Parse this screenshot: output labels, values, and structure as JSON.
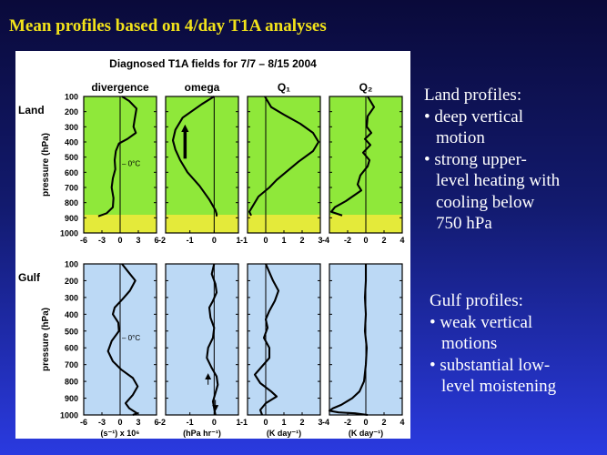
{
  "slide": {
    "title": "Mean profiles based on 4/day T1A analyses"
  },
  "land_text": {
    "heading": "Land profiles:",
    "lines": [
      "• deep vertical",
      "motion",
      "• strong upper-",
      "level heating with",
      "cooling below",
      "750 hPa"
    ]
  },
  "gulf_text": {
    "heading": "Gulf profiles:",
    "lines": [
      "• weak vertical",
      "motions",
      "• substantial low-",
      "level moistening"
    ]
  },
  "colors": {
    "land_fill": "#8fe83a",
    "land_below_ground": "#e4ea3a",
    "gulf_fill": "#bcd9f5",
    "curve": "#000000",
    "title_yellow": "#f2e21a"
  },
  "chart_data": {
    "type": "line",
    "title": "Diagnosed T1A fields for 7/7 – 8/15 2004",
    "ylabel": "pressure (hPa)",
    "y_ticks": [
      100,
      200,
      300,
      400,
      500,
      600,
      700,
      800,
      900,
      1000
    ],
    "ylim": [
      100,
      1000
    ],
    "y_inverted": true,
    "row_labels": [
      "Land",
      "Gulf"
    ],
    "land_surface_pressure": 880,
    "freezing_level_label": "0°C",
    "freezing_level_pressure": 540,
    "grid": false,
    "panels": [
      {
        "column": "divergence",
        "row": "Land",
        "xlim": [
          -6,
          6
        ],
        "x_ticks": [
          "-6",
          "-3",
          "0",
          "3",
          "6"
        ],
        "xlabel": "",
        "points": [
          [
            0.3,
            100
          ],
          [
            1.5,
            130
          ],
          [
            2.7,
            180
          ],
          [
            2.4,
            250
          ],
          [
            2.2,
            300
          ],
          [
            2.6,
            340
          ],
          [
            1.2,
            380
          ],
          [
            -0.2,
            410
          ],
          [
            -0.7,
            460
          ],
          [
            -0.9,
            520
          ],
          [
            -0.8,
            580
          ],
          [
            -1.2,
            640
          ],
          [
            -1.4,
            700
          ],
          [
            -1.1,
            770
          ],
          [
            -1.2,
            830
          ],
          [
            -2.2,
            870
          ],
          [
            -3.6,
            890
          ]
        ]
      },
      {
        "column": "omega",
        "row": "Land",
        "xlim": [
          -2,
          1
        ],
        "x_ticks": [
          "-2",
          "-1",
          "0",
          "1"
        ],
        "xlabel": "",
        "points": [
          [
            0.0,
            100
          ],
          [
            -0.5,
            150
          ],
          [
            -1.3,
            240
          ],
          [
            -1.6,
            320
          ],
          [
            -1.7,
            390
          ],
          [
            -1.6,
            450
          ],
          [
            -1.4,
            520
          ],
          [
            -1.1,
            600
          ],
          [
            -0.6,
            690
          ],
          [
            -0.2,
            780
          ],
          [
            0.05,
            850
          ],
          [
            0.1,
            875
          ],
          [
            0.1,
            890
          ]
        ]
      },
      {
        "column": "Q₁",
        "row": "Land",
        "xlim": [
          -1,
          3
        ],
        "x_ticks": [
          "-1",
          "0",
          "1",
          "2",
          "3"
        ],
        "xlabel": "",
        "points": [
          [
            -0.05,
            100
          ],
          [
            0.3,
            170
          ],
          [
            1.0,
            220
          ],
          [
            1.9,
            280
          ],
          [
            2.6,
            340
          ],
          [
            2.9,
            400
          ],
          [
            2.6,
            460
          ],
          [
            1.8,
            530
          ],
          [
            1.2,
            590
          ],
          [
            0.6,
            650
          ],
          [
            0.2,
            700
          ],
          [
            -0.4,
            760
          ],
          [
            -0.7,
            820
          ],
          [
            -0.9,
            860
          ],
          [
            -0.8,
            885
          ]
        ]
      },
      {
        "column": "Q₂",
        "row": "Land",
        "xlim": [
          -4,
          4
        ],
        "x_ticks": [
          "-4",
          "-2",
          "0",
          "2",
          "4"
        ],
        "xlabel": "",
        "points": [
          [
            0.2,
            100
          ],
          [
            0.9,
            170
          ],
          [
            0.2,
            230
          ],
          [
            0.1,
            300
          ],
          [
            0.6,
            340
          ],
          [
            -0.1,
            380
          ],
          [
            0.5,
            420
          ],
          [
            -0.3,
            470
          ],
          [
            0.4,
            520
          ],
          [
            0.2,
            560
          ],
          [
            -0.6,
            620
          ],
          [
            -0.9,
            680
          ],
          [
            -0.5,
            720
          ],
          [
            -2.2,
            790
          ],
          [
            -3.4,
            830
          ],
          [
            -3.8,
            860
          ],
          [
            -2.6,
            885
          ]
        ]
      },
      {
        "column": "divergence",
        "row": "Gulf",
        "xlim": [
          -6,
          6
        ],
        "x_ticks": [
          "-6",
          "-3",
          "0",
          "3",
          "6"
        ],
        "xlabel": "(s⁻¹) x 10⁶",
        "points": [
          [
            0.3,
            100
          ],
          [
            1.4,
            150
          ],
          [
            2.5,
            200
          ],
          [
            1.6,
            260
          ],
          [
            0.4,
            310
          ],
          [
            -0.9,
            360
          ],
          [
            -1.2,
            400
          ],
          [
            -0.3,
            450
          ],
          [
            -0.2,
            500
          ],
          [
            -1.4,
            560
          ],
          [
            -2.0,
            620
          ],
          [
            -1.2,
            680
          ],
          [
            0.2,
            730
          ],
          [
            2.1,
            780
          ],
          [
            2.9,
            830
          ],
          [
            2.1,
            880
          ],
          [
            0.9,
            930
          ],
          [
            1.5,
            960
          ],
          [
            2.8,
            990
          ],
          [
            2.1,
            1000
          ]
        ]
      },
      {
        "column": "omega",
        "row": "Gulf",
        "xlim": [
          -2,
          1
        ],
        "x_ticks": [
          "-2",
          "-1",
          "0",
          "1"
        ],
        "xlabel": "(hPa hr⁻¹)",
        "points": [
          [
            0.0,
            100
          ],
          [
            -0.1,
            160
          ],
          [
            0.05,
            220
          ],
          [
            0.1,
            270
          ],
          [
            -0.05,
            320
          ],
          [
            -0.2,
            360
          ],
          [
            -0.15,
            420
          ],
          [
            0.0,
            480
          ],
          [
            -0.05,
            540
          ],
          [
            -0.25,
            600
          ],
          [
            -0.3,
            660
          ],
          [
            -0.1,
            720
          ],
          [
            0.1,
            770
          ],
          [
            0.15,
            820
          ],
          [
            0.05,
            870
          ],
          [
            -0.05,
            920
          ],
          [
            0.0,
            960
          ],
          [
            0.05,
            1000
          ]
        ]
      },
      {
        "column": "Q₁",
        "row": "Gulf",
        "xlim": [
          -1,
          3
        ],
        "x_ticks": [
          "-1",
          "0",
          "1",
          "2",
          "3"
        ],
        "xlabel": "(K day⁻¹)",
        "points": [
          [
            0.0,
            100
          ],
          [
            0.2,
            150
          ],
          [
            0.4,
            200
          ],
          [
            0.7,
            260
          ],
          [
            0.5,
            320
          ],
          [
            0.2,
            380
          ],
          [
            0.0,
            430
          ],
          [
            0.1,
            480
          ],
          [
            -0.1,
            540
          ],
          [
            0.2,
            600
          ],
          [
            0.2,
            660
          ],
          [
            -0.2,
            710
          ],
          [
            -0.6,
            760
          ],
          [
            -0.3,
            810
          ],
          [
            0.3,
            860
          ],
          [
            0.6,
            890
          ],
          [
            0.0,
            930
          ],
          [
            -0.3,
            970
          ],
          [
            -0.2,
            1000
          ]
        ]
      },
      {
        "column": "Q₂",
        "row": "Gulf",
        "xlim": [
          -4,
          4
        ],
        "x_ticks": [
          "-4",
          "-2",
          "0",
          "2",
          "4"
        ],
        "xlabel": "(K day⁻¹)",
        "points": [
          [
            0.0,
            100
          ],
          [
            0.0,
            200
          ],
          [
            -0.1,
            300
          ],
          [
            0.0,
            400
          ],
          [
            -0.1,
            500
          ],
          [
            0.1,
            600
          ],
          [
            0.0,
            700
          ],
          [
            -0.2,
            800
          ],
          [
            -0.7,
            860
          ],
          [
            -1.5,
            900
          ],
          [
            -2.7,
            940
          ],
          [
            -3.6,
            960
          ],
          [
            -4.0,
            975
          ],
          [
            -3.0,
            985
          ],
          [
            -1.2,
            990
          ],
          [
            0.2,
            1000
          ]
        ]
      }
    ],
    "annotations": [
      {
        "panel": "omega",
        "row": "Land",
        "type": "arrow",
        "direction": "up",
        "style": "thick",
        "x": -1.2,
        "from": 510,
        "to": 310
      },
      {
        "panel": "omega",
        "row": "Gulf",
        "type": "arrow",
        "direction": "up",
        "style": "thin",
        "x": -0.25,
        "from": 820,
        "to": 770
      },
      {
        "panel": "omega",
        "row": "Gulf",
        "type": "arrow",
        "direction": "down",
        "style": "thin",
        "x": 0.05,
        "from": 910,
        "to": 960
      }
    ]
  }
}
